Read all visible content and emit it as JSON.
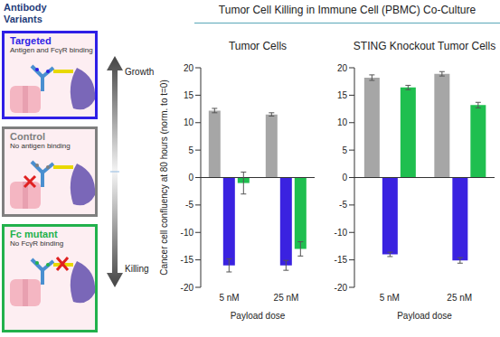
{
  "title": "Tumor Cell Killing in Immune Cell (PBMC) Co-Culture",
  "legend_panel": {
    "title": "Antibody Variants",
    "items": [
      {
        "name": "Targeted",
        "description": "Antigen and FcγR binding",
        "color": "#2e1ee6"
      },
      {
        "name": "Control",
        "description": "No antigen binding",
        "color": "#7f7f7f"
      },
      {
        "name": "Fc mutant",
        "description": "No FcγR binding",
        "color": "#22b14c"
      }
    ]
  },
  "scale_arrow": {
    "top": "Growth",
    "bottom": "Killing"
  },
  "chart_data": [
    {
      "type": "bar",
      "title": "Tumor Cells",
      "x_label": "Payload dose",
      "y_label": "Cancer cell confluency at 80 hours (norm. to t=0)",
      "categories": [
        "5 nM",
        "25 nM"
      ],
      "series": [
        {
          "name": "Control",
          "color": "#a6a6a6",
          "values": [
            12.2,
            11.5
          ],
          "errors": [
            0.4,
            0.3
          ]
        },
        {
          "name": "Targeted",
          "color": "#3a22e0",
          "values": [
            -16,
            -16
          ],
          "errors": [
            1.2,
            0.9
          ]
        },
        {
          "name": "Fc mutant",
          "color": "#1fbf4f",
          "values": [
            -1,
            -13
          ],
          "errors": [
            2.0,
            1.3
          ]
        }
      ],
      "ylim": [
        -20,
        20
      ],
      "yticks": [
        -20,
        -15,
        -10,
        -5,
        0,
        5,
        10,
        15,
        20
      ]
    },
    {
      "type": "bar",
      "title": "STING Knockout Tumor Cells",
      "x_label": "Payload dose",
      "categories": [
        "5 nM",
        "25 nM"
      ],
      "series": [
        {
          "name": "Control",
          "color": "#a6a6a6",
          "values": [
            18.2,
            18.9
          ],
          "errors": [
            0.5,
            0.4
          ]
        },
        {
          "name": "Targeted",
          "color": "#3a22e0",
          "values": [
            -14,
            -15.1
          ],
          "errors": [
            0.4,
            0.5
          ]
        },
        {
          "name": "Fc mutant",
          "color": "#1fbf4f",
          "values": [
            16.4,
            13.2
          ],
          "errors": [
            0.4,
            0.5
          ]
        }
      ],
      "ylim": [
        -20,
        20
      ],
      "yticks": [
        -20,
        -15,
        -10,
        -5,
        0,
        5,
        10,
        15,
        20
      ]
    }
  ]
}
